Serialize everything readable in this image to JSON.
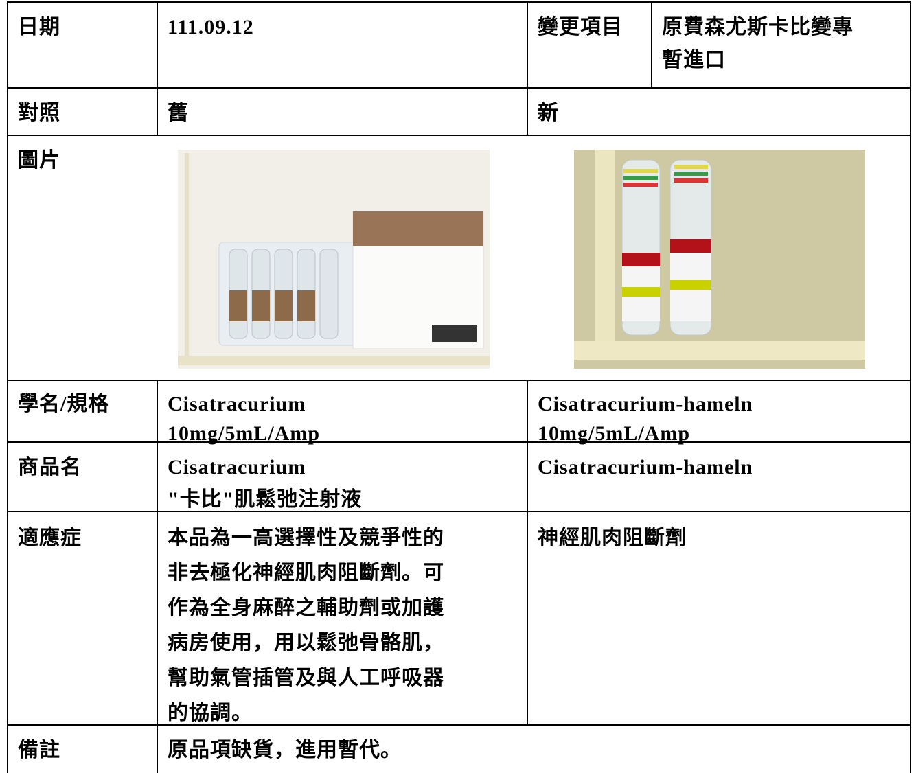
{
  "table": {
    "rows": [
      {
        "cells": [
          [
            "日期"
          ],
          [
            "111.09.12"
          ],
          [
            "變更項目"
          ],
          [
            "原費森尤斯卡比變專",
            "暫進口"
          ]
        ]
      },
      {
        "cells": [
          [
            "對照"
          ],
          [
            "舊"
          ],
          [
            "新"
          ]
        ]
      },
      {
        "cells": [
          [
            "圖片"
          ]
        ]
      },
      {
        "cells": [
          [
            "學名/規格"
          ],
          [
            "Cisatracurium",
            "10mg/5mL/Amp"
          ],
          [
            "Cisatracurium-hameln",
            "10mg/5mL/Amp"
          ]
        ]
      },
      {
        "cells": [
          [
            "商品名"
          ],
          [
            "Cisatracurium",
            "\"卡比\"肌鬆弛注射液"
          ],
          [
            "Cisatracurium-hameln"
          ]
        ]
      },
      {
        "cells": [
          [
            "適應症"
          ],
          [
            "本品為一高選擇性及競爭性的",
            "非去極化神經肌肉阻斷劑。可",
            "作為全身麻醉之輔助劑或加護",
            "病房使用，用以鬆弛骨骼肌，",
            "幫助氣管插管及與人工呼吸器",
            "的協調。"
          ],
          [
            "神經肌肉阻斷劑"
          ]
        ]
      },
      {
        "cells": [
          [
            "備註"
          ],
          [
            "原品項缺貨，進用暫代。"
          ]
        ]
      }
    ]
  }
}
